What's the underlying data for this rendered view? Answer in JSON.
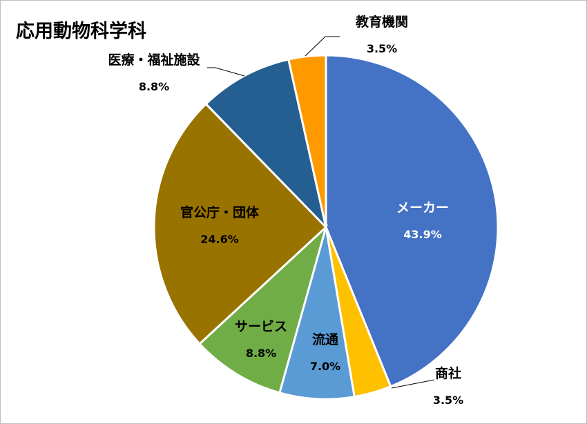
{
  "chart_data": {
    "type": "pie",
    "title": "応用動物科学科",
    "start_angle_deg": 0,
    "direction": "clockwise",
    "slices": [
      {
        "label": "メーカー",
        "percent_label": "43.9%",
        "value": 43.9,
        "color": "#4472c4",
        "label_color": "#ffffff"
      },
      {
        "label": "商社",
        "percent_label": "3.5%",
        "value": 3.5,
        "color": "#ffc000",
        "label_color": "#000000"
      },
      {
        "label": "流通",
        "percent_label": "7.0%",
        "value": 7.0,
        "color": "#5b9bd5",
        "label_color": "#000000"
      },
      {
        "label": "サービス",
        "percent_label": "8.8%",
        "value": 8.8,
        "color": "#70ad47",
        "label_color": "#000000"
      },
      {
        "label": "官公庁・団体",
        "percent_label": "24.6%",
        "value": 24.6,
        "color": "#997300",
        "label_color": "#000000"
      },
      {
        "label": "医療・福祉施設",
        "percent_label": "8.8%",
        "value": 8.8,
        "color": "#255e91",
        "label_color": "#000000"
      },
      {
        "label": "教育機関",
        "percent_label": "3.5%",
        "value": 3.5,
        "color": "#ff9900",
        "label_color": "#000000"
      }
    ]
  }
}
